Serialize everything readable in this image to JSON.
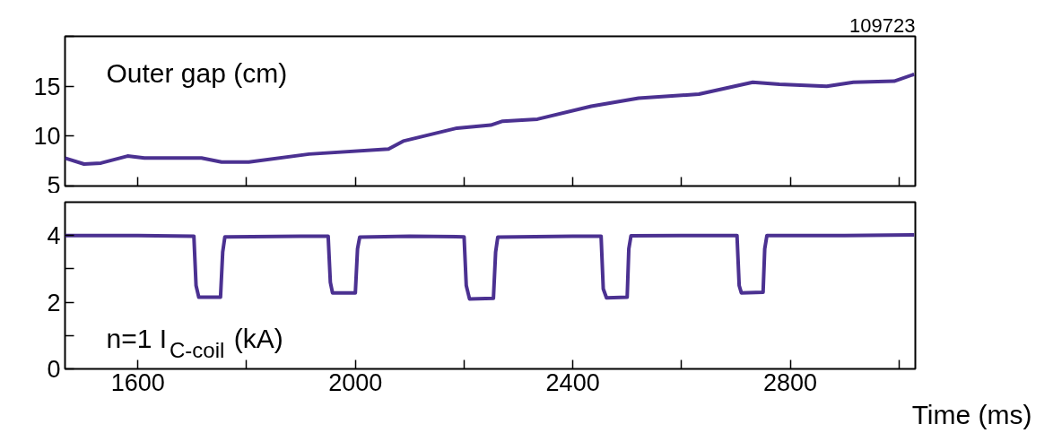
{
  "chart_data": [
    {
      "type": "line",
      "annotations": [
        "109723",
        "Outer gap (cm)"
      ],
      "xlim": [
        1466,
        3030
      ],
      "ylim": [
        5,
        20
      ],
      "xticks": [
        {
          "value": 1600,
          "label": null
        },
        {
          "value": 1800,
          "label": null
        },
        {
          "value": 2000,
          "label": null
        },
        {
          "value": 2200,
          "label": null
        },
        {
          "value": 2400,
          "label": null
        },
        {
          "value": 2600,
          "label": null
        },
        {
          "value": 2800,
          "label": null
        },
        {
          "value": 3000,
          "label": null
        }
      ],
      "yticks": [
        5,
        10,
        15,
        {
          "value": 20,
          "label": null
        }
      ],
      "tick_labels": "y",
      "grid": false,
      "line_style": "solid",
      "marker": "none",
      "x": [
        1466,
        1501,
        1532,
        1581,
        1612,
        1717,
        1754,
        1804,
        1915,
        2061,
        2088,
        2187,
        2249,
        2271,
        2335,
        2434,
        2521,
        2632,
        2731,
        2780,
        2867,
        2916,
        2991,
        3028
      ],
      "series": [
        {
          "color": "#4b3191",
          "values": [
            7.8,
            7.2,
            7.3,
            8.0,
            7.8,
            7.8,
            7.4,
            7.4,
            8.2,
            8.7,
            9.5,
            10.8,
            11.1,
            11.5,
            11.7,
            13.0,
            13.8,
            14.2,
            15.4,
            15.2,
            15.0,
            15.4,
            15.5,
            16.2
          ]
        }
      ]
    },
    {
      "type": "line",
      "annotations": [
        "n=1 I$_{C-coil}$ (kA)"
      ],
      "xlabel": "Time (ms)",
      "xlim": [
        1466,
        3030
      ],
      "ylim": [
        0,
        5
      ],
      "xticks": [
        1600,
        {
          "value": 1800,
          "label": null
        },
        2000,
        {
          "value": 2200,
          "label": null
        },
        2400,
        {
          "value": 2600,
          "label": null
        },
        2800,
        {
          "value": 3000,
          "label": null
        }
      ],
      "yticks": [
        0,
        {
          "value": 1,
          "label": null
        },
        2,
        {
          "value": 3,
          "label": null
        },
        4
      ],
      "grid": false,
      "line_style": "solid",
      "marker": "none",
      "x": [
        1466,
        1600,
        1703,
        1707,
        1712,
        1752,
        1756,
        1760,
        1900,
        1950,
        1954,
        1958,
        2000,
        2004,
        2008,
        2100,
        2200,
        2204,
        2210,
        2254,
        2258,
        2262,
        2400,
        2452,
        2456,
        2462,
        2500,
        2503,
        2507,
        2600,
        2702,
        2706,
        2710,
        2750,
        2753,
        2757,
        2900,
        3028
      ],
      "series": [
        {
          "color": "#4b3191",
          "values": [
            4.0,
            4.0,
            3.98,
            2.5,
            2.15,
            2.15,
            3.5,
            3.96,
            3.98,
            3.98,
            2.6,
            2.28,
            2.28,
            3.6,
            3.95,
            3.98,
            3.96,
            2.5,
            2.1,
            2.12,
            3.5,
            3.95,
            3.98,
            3.98,
            2.4,
            2.13,
            2.15,
            3.6,
            3.99,
            4.0,
            4.0,
            2.5,
            2.28,
            2.3,
            3.6,
            4.0,
            4.0,
            4.02
          ]
        }
      ]
    }
  ]
}
